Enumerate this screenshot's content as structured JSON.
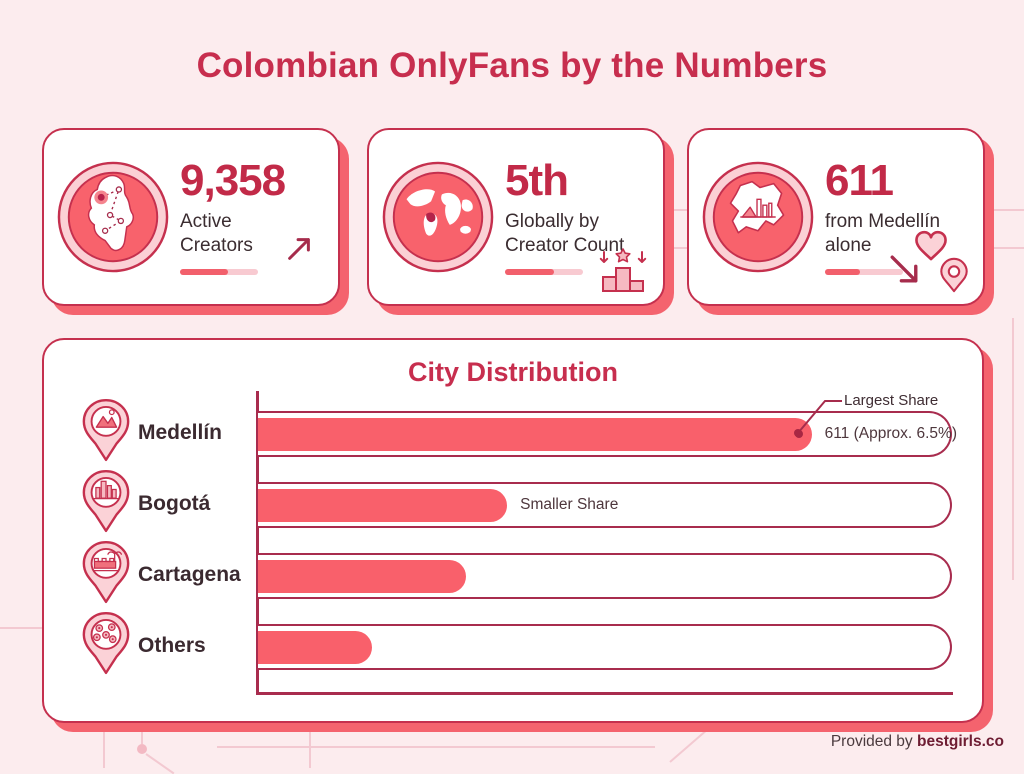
{
  "page": {
    "title": "Colombian OnlyFans by the Numbers"
  },
  "cards": [
    {
      "value": "9,358",
      "label_line1": "Active",
      "label_line2": "Creators",
      "icon": "colombia-map",
      "corner_icon": "trend-up-arrow",
      "progress_pct": 62
    },
    {
      "value": "5th",
      "label_line1": "Globally by",
      "label_line2": "Creator Count",
      "icon": "world-map",
      "corner_icon": "podium",
      "progress_pct": 63
    },
    {
      "value": "611",
      "label_line1": "from Medellín",
      "label_line2": "alone",
      "icon": "medellin-region-map",
      "corner_icon": "heart-arrow-location",
      "progress_pct": 45
    }
  ],
  "chart": {
    "title": "City Distribution",
    "annotation": "Largest Share",
    "rows": [
      {
        "city": "Medellín",
        "width_pct": 80,
        "value_label": "611 (Approx. 6.5%)",
        "icon": "mountains-pin"
      },
      {
        "city": "Bogotá",
        "width_pct": 36,
        "value_label": "Smaller Share",
        "icon": "city-skyline-pin"
      },
      {
        "city": "Cartagena",
        "width_pct": 30,
        "value_label": "",
        "icon": "fort-palm-pin"
      },
      {
        "city": "Others",
        "width_pct": 16.5,
        "value_label": "",
        "icon": "dots-pin"
      }
    ]
  },
  "footer": {
    "prefix": "Provided by ",
    "brand": "bestgirls.co"
  },
  "colors": {
    "background": "#fcecee",
    "accent_crimson": "#c5304e",
    "number_crimson": "#c22a48",
    "bar_salmon": "#f9606b",
    "shadow_salmon": "#f4636e",
    "light_pink": "#fbd2d7",
    "dark_text": "#3b2d31",
    "brand_text": "#6e1d33"
  },
  "chart_data": {
    "type": "bar",
    "orientation": "horizontal",
    "title": "City Distribution",
    "categories": [
      "Medellín",
      "Bogotá",
      "Cartagena",
      "Others"
    ],
    "values_relative_pct": [
      80,
      36,
      30,
      16.5
    ],
    "value_labels": [
      "611 (Approx. 6.5%)",
      "Smaller Share",
      "",
      ""
    ],
    "annotations": [
      {
        "target": "Medellín",
        "text": "Largest Share"
      }
    ],
    "legend": "none",
    "grid": "off",
    "stats_cards": [
      {
        "value": "9,358",
        "label": "Active Creators"
      },
      {
        "value": "5th",
        "label": "Globally by Creator Count"
      },
      {
        "value": "611",
        "label": "from Medellín alone"
      }
    ]
  }
}
